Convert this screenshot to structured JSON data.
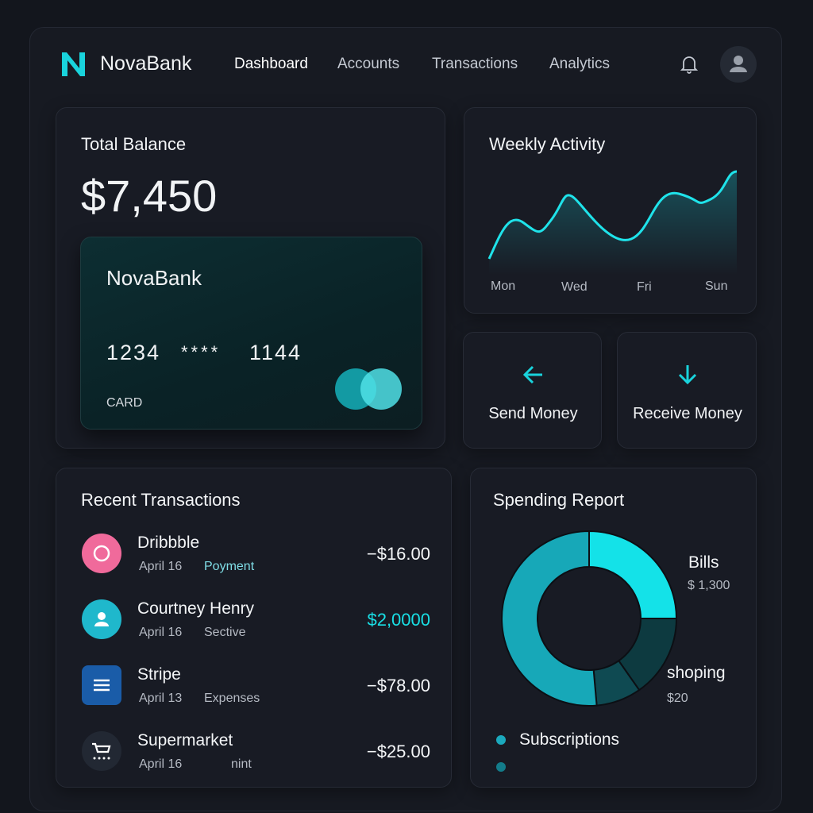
{
  "brand": {
    "name": "NovaBank",
    "logo_letter": "N",
    "accent": "#19d3dc"
  },
  "nav": [
    {
      "label": "Dashboard",
      "active": true
    },
    {
      "label": "Accounts"
    },
    {
      "label": "Transactions"
    },
    {
      "label": "Analytics"
    }
  ],
  "header": {
    "notification_icon": "bell-icon",
    "avatar_icon": "user-icon"
  },
  "balance": {
    "title": "Total Balance",
    "amount": "$7,450",
    "card": {
      "bank": "NovaBank",
      "number_parts": [
        "1234",
        "****",
        "1144"
      ],
      "label": "CARD"
    }
  },
  "weekly": {
    "title": "Weekly Activity",
    "days": [
      "Mon",
      "Wed",
      "Fri",
      "Sun"
    ]
  },
  "actions": [
    {
      "label": "Send Money",
      "icon": "arrow-left-icon"
    },
    {
      "label": "Receive Money",
      "icon": "arrow-down-icon"
    }
  ],
  "transactions": {
    "title": "Recent Transactions",
    "items": [
      {
        "name": "Dribbble",
        "date": "April 16",
        "category": "Poyment",
        "amount": "−$16.00",
        "icon": "circle-icon",
        "color": "#f06a9b",
        "positive": false
      },
      {
        "name": "Courtney Henry",
        "date": "April 16",
        "category": "Sective",
        "amount": "$2,0000",
        "icon": "user-icon",
        "color": "#1fb8cc",
        "positive": true
      },
      {
        "name": "Stripe",
        "date": "April 13",
        "category": "Expenses",
        "amount": "−$78.00",
        "icon": "menu-icon",
        "color": "#1a5ca8",
        "positive": false
      },
      {
        "name": "Supermarket",
        "date": "April 16",
        "category": "nint",
        "amount": "−$25.00",
        "icon": "cart-icon",
        "color": "#222833",
        "positive": false
      }
    ]
  },
  "spending": {
    "title": "Spending Report",
    "labels": [
      {
        "name": "Bills",
        "value": "$ 1,300"
      },
      {
        "name": "shoping",
        "value": "$20"
      }
    ],
    "legend": [
      "Subscriptions",
      ""
    ]
  }
}
